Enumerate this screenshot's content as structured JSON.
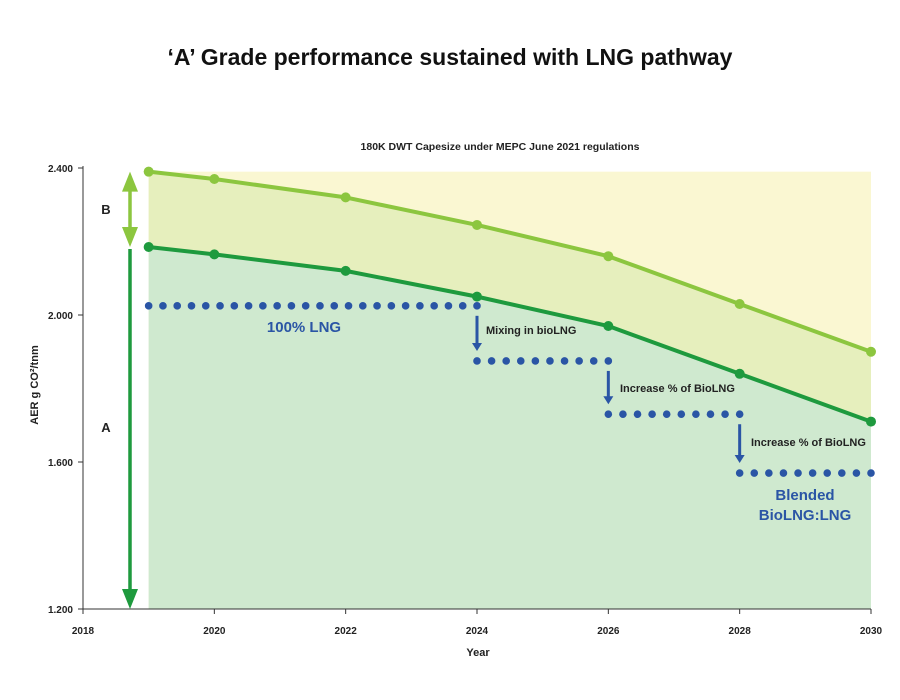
{
  "page": {
    "title": "‘A’ Grade performance sustained with LNG pathway"
  },
  "chart_data": {
    "type": "area",
    "title": "180K DWT Capesize under MEPC June 2021 regulations",
    "xlabel": "Year",
    "ylabel": "AER g CO²/tnm",
    "xlim": [
      2018,
      2030
    ],
    "ylim": [
      1.2,
      2.4
    ],
    "x_ticks": [
      "2018",
      "2020",
      "2022",
      "2024",
      "2026",
      "2028",
      "2030"
    ],
    "y_ticks": [
      "1.200",
      "1.600",
      "2.000",
      "2.400"
    ],
    "grid": false,
    "series": [
      {
        "x": [
          2019,
          2020,
          2022,
          2024,
          2026,
          2028,
          2030
        ],
        "values": [
          2.39,
          2.37,
          2.32,
          2.245,
          2.16,
          2.03,
          1.9
        ],
        "color": "#8cc63f"
      },
      {
        "x": [
          2019,
          2020,
          2022,
          2024,
          2026,
          2028,
          2030
        ],
        "values": [
          2.185,
          2.165,
          2.12,
          2.05,
          1.97,
          1.84,
          1.71
        ],
        "color": "#1e9a3e"
      }
    ],
    "area_colors": {
      "upper": "#faf7d2",
      "middle": "#e6efbd",
      "lower": "#cfe9cf"
    },
    "band_labels": [
      "B",
      "A"
    ],
    "lng_steps": [
      {
        "x_start": 2019,
        "x_end": 2024,
        "value": 2.025
      },
      {
        "x_start": 2024,
        "x_end": 2026,
        "value": 1.875
      },
      {
        "x_start": 2026,
        "x_end": 2028,
        "value": 1.73
      },
      {
        "x_start": 2028,
        "x_end": 2030,
        "value": 1.57
      }
    ],
    "lng_color": "#2a55a5",
    "annotations": {
      "lng_100": "100% LNG",
      "mixing": "Mixing in bioLNG",
      "increase_1": "Increase % of BioLNG",
      "increase_2": "Increase % of BioLNG",
      "blended_line1": "Blended",
      "blended_line2": "BioLNG:LNG"
    }
  }
}
